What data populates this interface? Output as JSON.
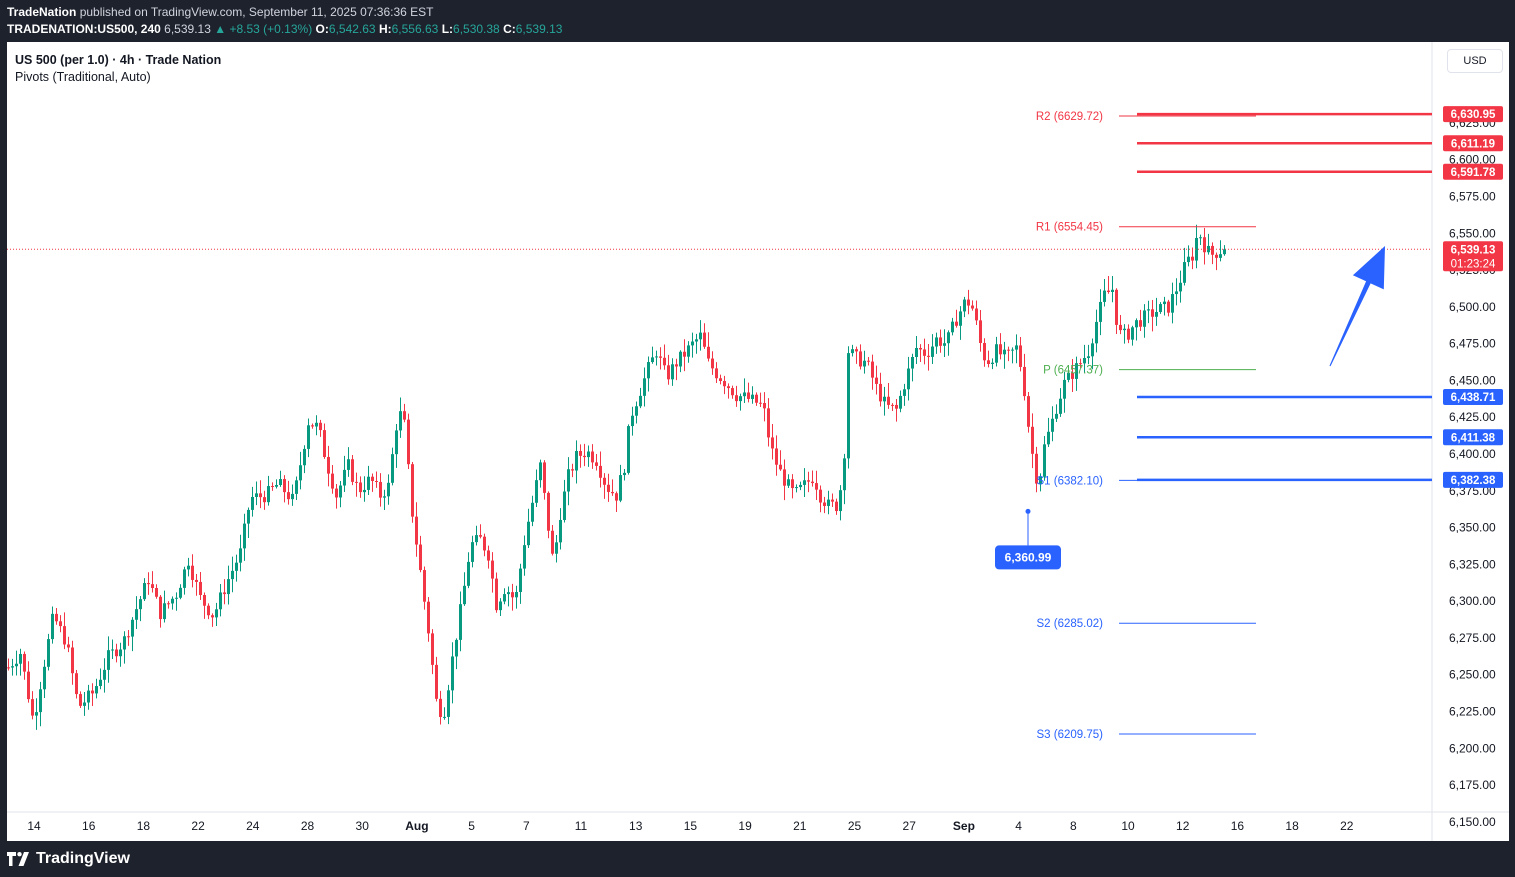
{
  "header": {
    "publisher": "TradeNation",
    "published_text": "published on TradingView.com, September 11, 2025 07:36:36 EST",
    "symbol": "TRADENATION:US500, 240",
    "last": "6,539.13",
    "change": "+8.53 (+0.13%)",
    "o_label": "O:",
    "o_value": "6,542.63",
    "h_label": "H:",
    "h_value": "6,556.63",
    "l_label": "L:",
    "l_value": "6,530.38",
    "c_label": "C:",
    "c_value": "6,539.13"
  },
  "legend": {
    "title": "US 500 (per 1.0) · 4h · Trade Nation",
    "indicator": "Pivots (Traditional, Auto)"
  },
  "currency": "USD",
  "footer": {
    "brand": "TradingView"
  },
  "colors": {
    "up": "#089981",
    "down": "#f23645",
    "blue": "#2962ff",
    "resistance": "#f23645",
    "pivot_green": "#4caf50"
  },
  "chart_data": {
    "type": "candlestick",
    "y_range": [
      6137,
      6680
    ],
    "y_ticks": [
      6150,
      6175,
      6200,
      6225,
      6250,
      6275,
      6300,
      6325,
      6350,
      6375,
      6400,
      6425,
      6450,
      6475,
      6500,
      6525,
      6550,
      6575,
      6600,
      6625
    ],
    "x_labels": [
      "14",
      "16",
      "18",
      "22",
      "24",
      "28",
      "30",
      "Aug",
      "5",
      "7",
      "11",
      "13",
      "15",
      "19",
      "21",
      "25",
      "27",
      "Sep",
      "4",
      "8",
      "10",
      "12",
      "16",
      "18",
      "22"
    ],
    "x_label_bold": [
      "Aug",
      "Sep"
    ],
    "current_price": {
      "value": 6539.13,
      "label": "6,539.13",
      "countdown": "01:23:24"
    },
    "low_marker": {
      "value": 6360.99,
      "label": "6,360.99"
    },
    "pivots": [
      {
        "name": "R2",
        "label": "R2 (6629.72)",
        "value": 6629.72
      },
      {
        "name": "R1",
        "label": "R1 (6554.45)",
        "value": 6554.45
      },
      {
        "name": "P",
        "label": "P (6457.37)",
        "value": 6457.37
      },
      {
        "name": "S1",
        "label": "S1 (6382.10)",
        "value": 6382.1
      },
      {
        "name": "S2",
        "label": "S2 (6285.02)",
        "value": 6285.02
      },
      {
        "name": "S3",
        "label": "S3 (6209.75)",
        "value": 6209.75
      }
    ],
    "resistance_levels": [
      {
        "value": 6630.95,
        "label": "6,630.95"
      },
      {
        "value": 6611.19,
        "label": "6,611.19"
      },
      {
        "value": 6591.78,
        "label": "6,591.78"
      }
    ],
    "support_levels": [
      {
        "value": 6438.71,
        "label": "6,438.71"
      },
      {
        "value": 6411.38,
        "label": "6,411.38"
      },
      {
        "value": 6382.38,
        "label": "6,382.38"
      }
    ],
    "annotation": {
      "type": "arrow-up",
      "color": "#2962ff"
    },
    "waypoints": [
      [
        0,
        6255
      ],
      [
        12,
        6265
      ],
      [
        25,
        6218
      ],
      [
        35,
        6255
      ],
      [
        45,
        6290
      ],
      [
        58,
        6272
      ],
      [
        70,
        6228
      ],
      [
        85,
        6238
      ],
      [
        100,
        6262
      ],
      [
        115,
        6272
      ],
      [
        128,
        6295
      ],
      [
        140,
        6315
      ],
      [
        152,
        6292
      ],
      [
        168,
        6305
      ],
      [
        180,
        6328
      ],
      [
        192,
        6302
      ],
      [
        205,
        6290
      ],
      [
        218,
        6312
      ],
      [
        232,
        6333
      ],
      [
        242,
        6370
      ],
      [
        258,
        6372
      ],
      [
        270,
        6380
      ],
      [
        285,
        6368
      ],
      [
        300,
        6422
      ],
      [
        310,
        6418
      ],
      [
        318,
        6395
      ],
      [
        328,
        6372
      ],
      [
        340,
        6392
      ],
      [
        350,
        6375
      ],
      [
        362,
        6383
      ],
      [
        372,
        6372
      ],
      [
        380,
        6378
      ],
      [
        390,
        6430
      ],
      [
        397,
        6418
      ],
      [
        402,
        6370
      ],
      [
        410,
        6330
      ],
      [
        420,
        6280
      ],
      [
        428,
        6232
      ],
      [
        435,
        6222
      ],
      [
        445,
        6265
      ],
      [
        455,
        6305
      ],
      [
        462,
        6338
      ],
      [
        472,
        6342
      ],
      [
        480,
        6332
      ],
      [
        488,
        6298
      ],
      [
        497,
        6310
      ],
      [
        507,
        6300
      ],
      [
        517,
        6345
      ],
      [
        525,
        6370
      ],
      [
        532,
        6392
      ],
      [
        540,
        6350
      ],
      [
        545,
        6325
      ],
      [
        552,
        6360
      ],
      [
        560,
        6385
      ],
      [
        568,
        6398
      ],
      [
        578,
        6402
      ],
      [
        588,
        6396
      ],
      [
        598,
        6378
      ],
      [
        608,
        6372
      ],
      [
        616,
        6392
      ],
      [
        622,
        6425
      ],
      [
        630,
        6440
      ],
      [
        640,
        6458
      ],
      [
        648,
        6470
      ],
      [
        658,
        6452
      ],
      [
        668,
        6462
      ],
      [
        676,
        6468
      ],
      [
        686,
        6476
      ],
      [
        692,
        6480
      ],
      [
        700,
        6462
      ],
      [
        708,
        6455
      ],
      [
        718,
        6448
      ],
      [
        728,
        6440
      ],
      [
        738,
        6438
      ],
      [
        748,
        6435
      ],
      [
        755,
        6432
      ],
      [
        762,
        6405
      ],
      [
        770,
        6390
      ],
      [
        778,
        6380
      ],
      [
        786,
        6372
      ],
      [
        795,
        6378
      ],
      [
        805,
        6385
      ],
      [
        812,
        6372
      ],
      [
        820,
        6365
      ],
      [
        828,
        6365
      ],
      [
        835,
        6385
      ],
      [
        840,
        6470
      ],
      [
        848,
        6465
      ],
      [
        858,
        6462
      ],
      [
        868,
        6445
      ],
      [
        878,
        6432
      ],
      [
        888,
        6430
      ],
      [
        898,
        6452
      ],
      [
        908,
        6472
      ],
      [
        918,
        6468
      ],
      [
        928,
        6478
      ],
      [
        938,
        6475
      ],
      [
        948,
        6492
      ],
      [
        958,
        6505
      ],
      [
        965,
        6498
      ],
      [
        972,
        6475
      ],
      [
        978,
        6462
      ],
      [
        988,
        6470
      ],
      [
        998,
        6465
      ],
      [
        1008,
        6472
      ],
      [
        1014,
        6455
      ],
      [
        1020,
        6420
      ],
      [
        1025,
        6395
      ],
      [
        1030,
        6378
      ],
      [
        1036,
        6405
      ],
      [
        1042,
        6418
      ],
      [
        1048,
        6432
      ],
      [
        1056,
        6448
      ],
      [
        1064,
        6455
      ],
      [
        1072,
        6462
      ],
      [
        1080,
        6470
      ],
      [
        1088,
        6490
      ],
      [
        1096,
        6508
      ],
      [
        1104,
        6512
      ],
      [
        1110,
        6482
      ],
      [
        1118,
        6480
      ],
      [
        1126,
        6488
      ],
      [
        1134,
        6492
      ],
      [
        1142,
        6495
      ],
      [
        1150,
        6498
      ],
      [
        1160,
        6500
      ],
      [
        1170,
        6515
      ],
      [
        1178,
        6530
      ],
      [
        1184,
        6535
      ],
      [
        1190,
        6552
      ],
      [
        1196,
        6542
      ],
      [
        1202,
        6535
      ],
      [
        1210,
        6538
      ],
      [
        1216,
        6539.13
      ]
    ]
  }
}
